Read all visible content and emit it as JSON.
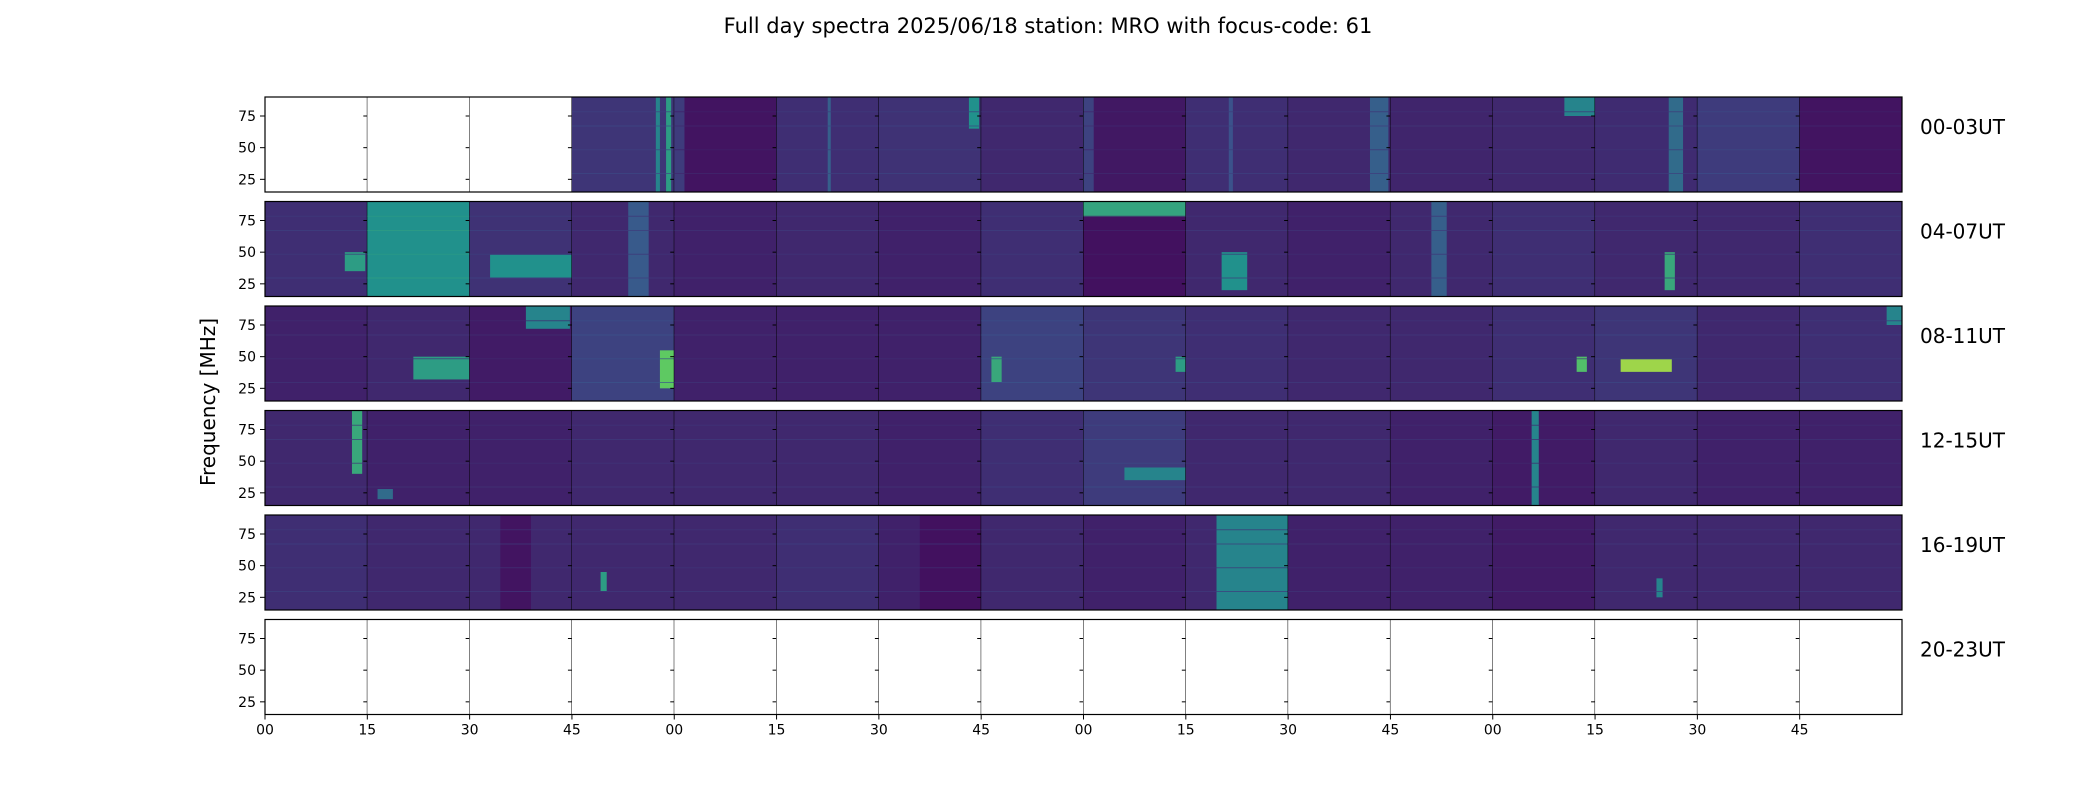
{
  "chart_data": {
    "type": "heatmap",
    "title": "Full day spectra 2025/06/18 station: MRO with focus-code: 61",
    "ylabel": "Frequency [MHz]",
    "y_ticks": [
      "25",
      "50",
      "75"
    ],
    "ylim": [
      15,
      90
    ],
    "x_ticks": [
      "00",
      "15",
      "30",
      "45",
      "00",
      "15",
      "30",
      "45",
      "00",
      "15",
      "30",
      "45",
      "00",
      "15",
      "30",
      "45"
    ],
    "panels_per_row": 16,
    "colormap": [
      "#440154",
      "#3b528b",
      "#21918c",
      "#5ec962",
      "#fde725"
    ],
    "rows": [
      {
        "label": "00-03UT",
        "panels": [
          {
            "empty": true
          },
          {
            "empty": true
          },
          {
            "empty": true
          },
          {
            "base": 0.16,
            "bands": [
              {
                "x0": 0.82,
                "x1": 0.86,
                "v": 0.45
              },
              {
                "x0": 0.92,
                "x1": 0.97,
                "v": 0.55
              }
            ]
          },
          {
            "base": 0.06,
            "bands": [
              {
                "x0": 0.0,
                "x1": 0.1,
                "v": 0.18
              }
            ]
          },
          {
            "base": 0.14,
            "bands": [
              {
                "x0": 0.5,
                "x1": 0.53,
                "v": 0.3
              }
            ]
          },
          {
            "base": 0.15,
            "bands": [
              {
                "x0": 0.88,
                "x1": 0.98,
                "v": 0.5,
                "y0": 65,
                "y1": 90
              }
            ]
          },
          {
            "base": 0.12,
            "bands": []
          },
          {
            "base": 0.07,
            "bands": [
              {
                "x0": 0.0,
                "x1": 0.1,
                "v": 0.2
              }
            ]
          },
          {
            "base": 0.14,
            "bands": [
              {
                "x0": 0.42,
                "x1": 0.46,
                "v": 0.25
              }
            ]
          },
          {
            "base": 0.12,
            "bands": [
              {
                "x0": 0.8,
                "x1": 0.98,
                "v": 0.3
              }
            ]
          },
          {
            "base": 0.11,
            "bands": []
          },
          {
            "base": 0.12,
            "bands": [
              {
                "x0": 0.7,
                "x1": 1.0,
                "v": 0.45,
                "y0": 75,
                "y1": 90
              }
            ]
          },
          {
            "base": 0.13,
            "bands": [
              {
                "x0": 0.72,
                "x1": 0.86,
                "v": 0.35
              }
            ]
          },
          {
            "base": 0.18,
            "bands": []
          },
          {
            "base": 0.06,
            "bands": []
          }
        ]
      },
      {
        "label": "04-07UT",
        "panels": [
          {
            "base": 0.14,
            "bands": [
              {
                "x0": 0.78,
                "x1": 0.98,
                "v": 0.55,
                "y0": 35,
                "y1": 50
              }
            ]
          },
          {
            "base": 0.5,
            "bands": []
          },
          {
            "base": 0.15,
            "bands": [
              {
                "x0": 0.2,
                "x1": 1.0,
                "v": 0.5,
                "y0": 30,
                "y1": 48
              }
            ]
          },
          {
            "base": 0.12,
            "bands": [
              {
                "x0": 0.55,
                "x1": 0.75,
                "v": 0.28
              }
            ]
          },
          {
            "base": 0.1,
            "bands": []
          },
          {
            "base": 0.12,
            "bands": []
          },
          {
            "base": 0.1,
            "bands": []
          },
          {
            "base": 0.14,
            "bands": []
          },
          {
            "base": 0.05,
            "bands": [
              {
                "x0": 0.0,
                "x1": 1.0,
                "v": 0.58,
                "y0": 78,
                "y1": 90
              }
            ]
          },
          {
            "base": 0.12,
            "bands": [
              {
                "x0": 0.35,
                "x1": 0.6,
                "v": 0.5,
                "y0": 20,
                "y1": 50
              }
            ]
          },
          {
            "base": 0.1,
            "bands": []
          },
          {
            "base": 0.12,
            "bands": [
              {
                "x0": 0.4,
                "x1": 0.55,
                "v": 0.3
              }
            ]
          },
          {
            "base": 0.14,
            "bands": []
          },
          {
            "base": 0.12,
            "bands": [
              {
                "x0": 0.68,
                "x1": 0.78,
                "v": 0.6,
                "y0": 20,
                "y1": 50
              }
            ]
          },
          {
            "base": 0.12,
            "bands": []
          },
          {
            "base": 0.14,
            "bands": []
          }
        ]
      },
      {
        "label": "08-11UT",
        "panels": [
          {
            "base": 0.1,
            "bands": []
          },
          {
            "base": 0.12,
            "bands": [
              {
                "x0": 0.45,
                "x1": 1.0,
                "v": 0.55,
                "y0": 32,
                "y1": 50
              }
            ]
          },
          {
            "base": 0.08,
            "bands": [
              {
                "x0": 0.55,
                "x1": 0.98,
                "v": 0.45,
                "y0": 72,
                "y1": 90
              }
            ]
          },
          {
            "base": 0.2,
            "bands": [
              {
                "x0": 0.86,
                "x1": 1.0,
                "v": 0.75,
                "y0": 25,
                "y1": 55
              }
            ]
          },
          {
            "base": 0.1,
            "bands": []
          },
          {
            "base": 0.1,
            "bands": []
          },
          {
            "base": 0.1,
            "bands": []
          },
          {
            "base": 0.2,
            "bands": [
              {
                "x0": 0.1,
                "x1": 0.2,
                "v": 0.6,
                "y0": 30,
                "y1": 50
              }
            ]
          },
          {
            "base": 0.16,
            "bands": [
              {
                "x0": 0.9,
                "x1": 1.0,
                "v": 0.55,
                "y0": 38,
                "y1": 50
              }
            ]
          },
          {
            "base": 0.14,
            "bands": []
          },
          {
            "base": 0.12,
            "bands": []
          },
          {
            "base": 0.12,
            "bands": []
          },
          {
            "base": 0.14,
            "bands": [
              {
                "x0": 0.82,
                "x1": 0.92,
                "v": 0.7,
                "y0": 38,
                "y1": 50
              }
            ]
          },
          {
            "base": 0.16,
            "bands": [
              {
                "x0": 0.25,
                "x1": 0.75,
                "v": 0.85,
                "y0": 38,
                "y1": 48
              }
            ]
          },
          {
            "base": 0.12,
            "bands": []
          },
          {
            "base": 0.14,
            "bands": [
              {
                "x0": 0.85,
                "x1": 1.0,
                "v": 0.45,
                "y0": 75,
                "y1": 90
              }
            ]
          }
        ]
      },
      {
        "label": "12-15UT",
        "panels": [
          {
            "base": 0.12,
            "bands": [
              {
                "x0": 0.85,
                "x1": 0.95,
                "v": 0.6,
                "y0": 40,
                "y1": 90
              }
            ]
          },
          {
            "base": 0.1,
            "bands": [
              {
                "x0": 0.1,
                "x1": 0.25,
                "v": 0.35,
                "y0": 20,
                "y1": 28
              }
            ]
          },
          {
            "base": 0.1,
            "bands": []
          },
          {
            "base": 0.12,
            "bands": []
          },
          {
            "base": 0.12,
            "bands": []
          },
          {
            "base": 0.12,
            "bands": []
          },
          {
            "base": 0.1,
            "bands": []
          },
          {
            "base": 0.14,
            "bands": []
          },
          {
            "base": 0.18,
            "bands": [
              {
                "x0": 0.4,
                "x1": 1.0,
                "v": 0.45,
                "y0": 35,
                "y1": 45
              }
            ]
          },
          {
            "base": 0.12,
            "bands": []
          },
          {
            "base": 0.12,
            "bands": []
          },
          {
            "base": 0.1,
            "bands": []
          },
          {
            "base": 0.08,
            "bands": [
              {
                "x0": 0.38,
                "x1": 0.45,
                "v": 0.45
              }
            ]
          },
          {
            "base": 0.12,
            "bands": []
          },
          {
            "base": 0.1,
            "bands": []
          },
          {
            "base": 0.1,
            "bands": []
          }
        ]
      },
      {
        "label": "16-19UT",
        "panels": [
          {
            "base": 0.14,
            "bands": []
          },
          {
            "base": 0.12,
            "bands": []
          },
          {
            "base": 0.12,
            "bands": [
              {
                "x0": 0.3,
                "x1": 0.6,
                "v": 0.06
              }
            ]
          },
          {
            "base": 0.12,
            "bands": [
              {
                "x0": 0.28,
                "x1": 0.34,
                "v": 0.55,
                "y0": 30,
                "y1": 45
              }
            ]
          },
          {
            "base": 0.12,
            "bands": []
          },
          {
            "base": 0.14,
            "bands": []
          },
          {
            "base": 0.1,
            "bands": [
              {
                "x0": 0.4,
                "x1": 1.0,
                "v": 0.05
              }
            ]
          },
          {
            "base": 0.12,
            "bands": []
          },
          {
            "base": 0.1,
            "bands": []
          },
          {
            "base": 0.12,
            "bands": [
              {
                "x0": 0.3,
                "x1": 1.0,
                "v": 0.45
              }
            ]
          },
          {
            "base": 0.1,
            "bands": []
          },
          {
            "base": 0.1,
            "bands": []
          },
          {
            "base": 0.08,
            "bands": []
          },
          {
            "base": 0.12,
            "bands": [
              {
                "x0": 0.6,
                "x1": 0.66,
                "v": 0.45,
                "y0": 25,
                "y1": 40
              }
            ]
          },
          {
            "base": 0.12,
            "bands": []
          },
          {
            "base": 0.12,
            "bands": []
          }
        ]
      },
      {
        "label": "20-23UT",
        "panels": [
          {
            "empty": true
          },
          {
            "empty": true
          },
          {
            "empty": true
          },
          {
            "empty": true
          },
          {
            "empty": true
          },
          {
            "empty": true
          },
          {
            "empty": true
          },
          {
            "empty": true
          },
          {
            "empty": true
          },
          {
            "empty": true
          },
          {
            "empty": true
          },
          {
            "empty": true
          },
          {
            "empty": true
          },
          {
            "empty": true
          },
          {
            "empty": true
          },
          {
            "empty": true
          }
        ]
      }
    ]
  }
}
